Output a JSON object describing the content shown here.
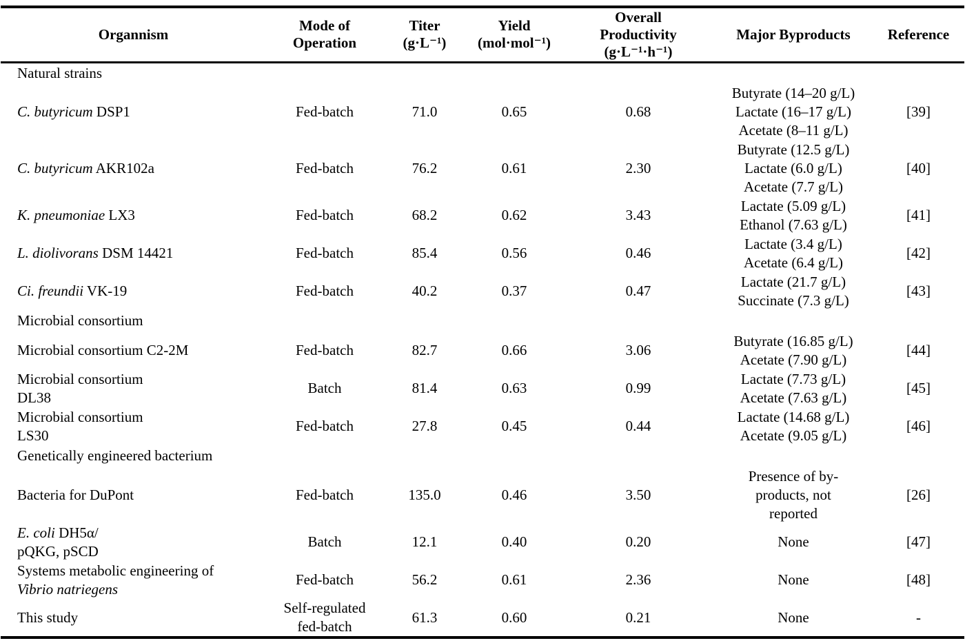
{
  "page": {
    "background_color": "#ffffff",
    "text_color": "#000000",
    "rule_color": "#000000"
  },
  "table": {
    "columns": [
      {
        "key": "organism",
        "header_lines": [
          "Organnism"
        ]
      },
      {
        "key": "mode",
        "header_lines": [
          "Mode of",
          "Operation"
        ]
      },
      {
        "key": "titer",
        "header_lines": [
          "Titer",
          "(g·L⁻¹)"
        ]
      },
      {
        "key": "yield",
        "header_lines": [
          "Yield",
          "(mol·mol⁻¹)"
        ]
      },
      {
        "key": "productivity",
        "header_lines": [
          "Overall",
          "Productivity",
          "(g·L⁻¹·h⁻¹)"
        ]
      },
      {
        "key": "byproducts",
        "header_lines": [
          "Major Byproducts"
        ]
      },
      {
        "key": "reference",
        "header_lines": [
          "Reference"
        ]
      }
    ],
    "rows": [
      {
        "type": "section",
        "label": "Natural strains"
      },
      {
        "type": "data",
        "organism": [
          [
            {
              "text": "C. butyricum",
              "italic": true
            },
            {
              "text": " DSP1",
              "italic": false
            }
          ]
        ],
        "mode": [
          "Fed-batch"
        ],
        "titer": "71.0",
        "yield": "0.65",
        "productivity": "0.68",
        "byproducts": [
          "Butyrate (14–20 g/L)",
          "Lactate (16–17 g/L)",
          "Acetate (8–11 g/L)"
        ],
        "reference": "[39]"
      },
      {
        "type": "data",
        "organism": [
          [
            {
              "text": "C. butyricum",
              "italic": true
            },
            {
              "text": " AKR102a",
              "italic": false
            }
          ]
        ],
        "mode": [
          "Fed-batch"
        ],
        "titer": "76.2",
        "yield": "0.61",
        "productivity": "2.30",
        "byproducts": [
          "Butyrate (12.5 g/L)",
          "Lactate (6.0 g/L)",
          "Acetate (7.7 g/L)"
        ],
        "reference": "[40]"
      },
      {
        "type": "data",
        "organism": [
          [
            {
              "text": "K. pneumoniae",
              "italic": true
            },
            {
              "text": " LX3",
              "italic": false
            }
          ]
        ],
        "mode": [
          "Fed-batch"
        ],
        "titer": "68.2",
        "yield": "0.62",
        "productivity": "3.43",
        "byproducts": [
          "Lactate (5.09 g/L)",
          "Ethanol (7.63 g/L)"
        ],
        "reference": "[41]"
      },
      {
        "type": "data",
        "organism": [
          [
            {
              "text": "L. diolivorans",
              "italic": true
            },
            {
              "text": " DSM 14421",
              "italic": false
            }
          ]
        ],
        "mode": [
          "Fed-batch"
        ],
        "titer": "85.4",
        "yield": "0.56",
        "productivity": "0.46",
        "byproducts": [
          "Lactate (3.4 g/L)",
          "Acetate (6.4 g/L)"
        ],
        "reference": "[42]"
      },
      {
        "type": "data",
        "organism": [
          [
            {
              "text": "Ci. freundii",
              "italic": true
            },
            {
              "text": " VK-19",
              "italic": false
            }
          ]
        ],
        "mode": [
          "Fed-batch"
        ],
        "titer": "40.2",
        "yield": "0.37",
        "productivity": "0.47",
        "byproducts": [
          "Lactate (21.7 g/L)",
          "Succinate (7.3 g/L)"
        ],
        "reference": "[43]"
      },
      {
        "type": "section",
        "label": "Microbial consortium"
      },
      {
        "type": "data",
        "organism": [
          [
            {
              "text": "Microbial consortium C2-2M",
              "italic": false
            }
          ]
        ],
        "mode": [
          "Fed-batch"
        ],
        "titer": "82.7",
        "yield": "0.66",
        "productivity": "3.06",
        "byproducts": [
          "Butyrate (16.85 g/L)",
          "Acetate (7.90 g/L)"
        ],
        "reference": "[44]"
      },
      {
        "type": "data",
        "organism": [
          [
            {
              "text": "Microbial consortium",
              "italic": false
            }
          ],
          [
            {
              "text": "DL38",
              "italic": false
            }
          ]
        ],
        "mode": [
          "Batch"
        ],
        "titer": "81.4",
        "yield": "0.63",
        "productivity": "0.99",
        "byproducts": [
          "Lactate (7.73 g/L)",
          "Acetate (7.63 g/L)"
        ],
        "reference": "[45]"
      },
      {
        "type": "data",
        "organism": [
          [
            {
              "text": "Microbial consortium",
              "italic": false
            }
          ],
          [
            {
              "text": "LS30",
              "italic": false
            }
          ]
        ],
        "mode": [
          "Fed-batch"
        ],
        "titer": "27.8",
        "yield": "0.45",
        "productivity": "0.44",
        "byproducts": [
          "Lactate (14.68 g/L)",
          "Acetate (9.05 g/L)"
        ],
        "reference": "[46]"
      },
      {
        "type": "section",
        "label": "Genetically engineered bacterium"
      },
      {
        "type": "data",
        "organism": [
          [
            {
              "text": "Bacteria for DuPont",
              "italic": false
            }
          ]
        ],
        "mode": [
          "Fed-batch"
        ],
        "titer": "135.0",
        "yield": "0.46",
        "productivity": "3.50",
        "byproducts": [
          "Presence of by-",
          "products, not",
          "reported"
        ],
        "reference": "[26]"
      },
      {
        "type": "data",
        "organism": [
          [
            {
              "text": "E. coli",
              "italic": true
            },
            {
              "text": " DH5α/",
              "italic": false
            }
          ],
          [
            {
              "text": "pQKG, pSCD",
              "italic": false
            }
          ]
        ],
        "mode": [
          "Batch"
        ],
        "titer": "12.1",
        "yield": "0.40",
        "productivity": "0.20",
        "byproducts": [
          "None"
        ],
        "reference": "[47]"
      },
      {
        "type": "data",
        "organism": [
          [
            {
              "text": "Systems metabolic engineering of",
              "italic": false
            }
          ],
          [
            {
              "text": "Vibrio natriegens",
              "italic": true
            }
          ]
        ],
        "mode": [
          "Fed-batch"
        ],
        "titer": "56.2",
        "yield": "0.61",
        "productivity": "2.36",
        "byproducts": [
          "None"
        ],
        "reference": "[48]"
      },
      {
        "type": "data",
        "organism": [
          [
            {
              "text": "This study",
              "italic": false
            }
          ]
        ],
        "mode": [
          "Self-regulated",
          "fed-batch"
        ],
        "titer": "61.3",
        "yield": "0.60",
        "productivity": "0.21",
        "byproducts": [
          "None"
        ],
        "reference": "-"
      }
    ]
  }
}
